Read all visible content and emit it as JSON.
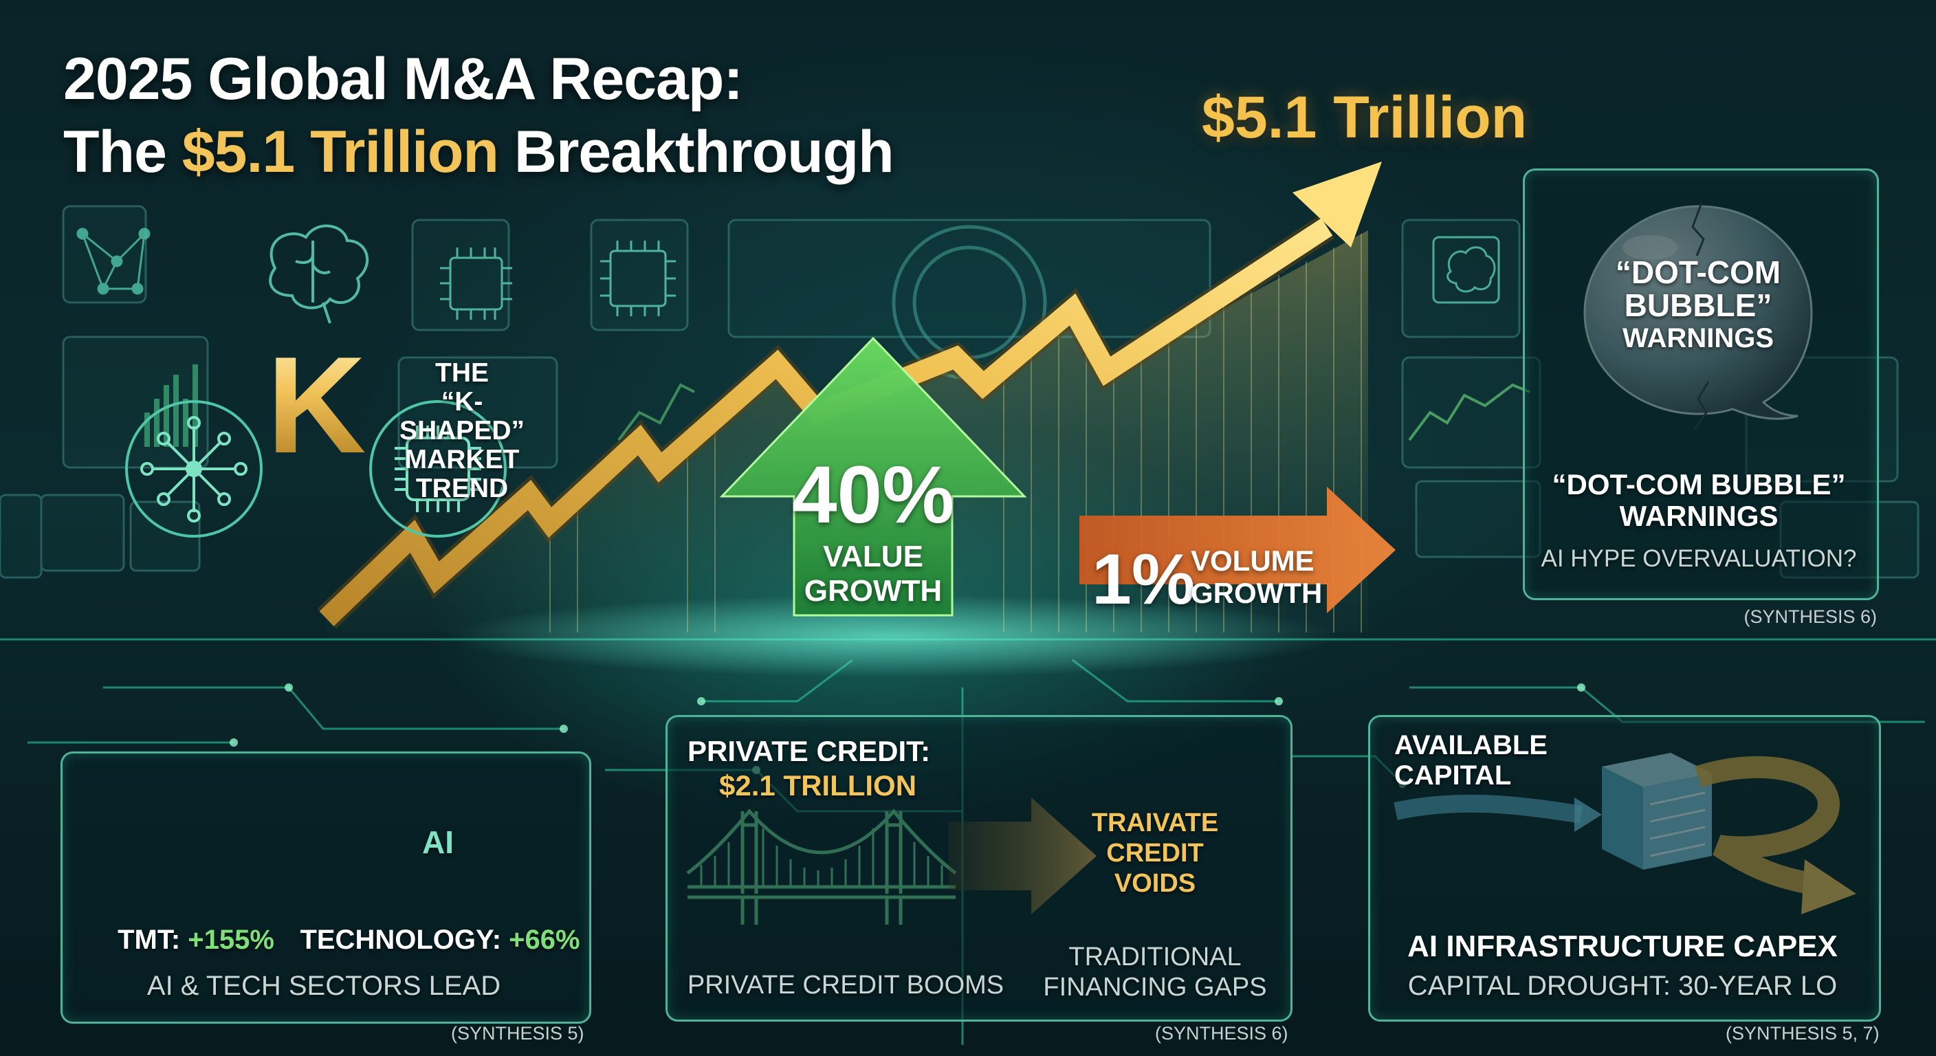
{
  "title": {
    "line1": "2025 Global M&A Recap:",
    "line2_prefix": "The ",
    "line2_highlight": "$5.1 Trillion",
    "line2_suffix": " Breakthrough"
  },
  "peak_label": "$5.1 Trillion",
  "k_trend": {
    "letter": "K",
    "line1": "THE",
    "line2": "“K-SHAPED”",
    "line3": "MARKET",
    "line4": "TREND"
  },
  "value_growth": {
    "percent": "40%",
    "line1": "VALUE",
    "line2": "GROWTH"
  },
  "volume_growth": {
    "percent": "1%",
    "line1": "VOLUME",
    "line2": "GROWTH"
  },
  "bubble_panel": {
    "bubble_line1": "“DOT-COM",
    "bubble_line2": "BUBBLE”",
    "bubble_line3": "WARNINGS",
    "heading_line1": "“DOT-COM BUBBLE”",
    "heading_line2": "WARNINGS",
    "subtitle": "AI HYPE OVERVALUATION?",
    "source": "(SYNTHESIS 6)"
  },
  "sectors_panel": {
    "tmt_label": "TMT:",
    "tmt_value": "+155%",
    "tech_label": "TECHNOLOGY:",
    "tech_value": "+66%",
    "chip_text": "AI",
    "caption": "AI & TECH SECTORS LEAD",
    "source": "(SYNTHESIS 5)"
  },
  "credit_panel": {
    "heading_line1": "PRIVATE CREDIT:",
    "heading_line2": "$2.1 TRILLION",
    "voids_line1": "TRAIVATE",
    "voids_line2": "CREDIT",
    "voids_line3": "VOIDS",
    "caption_left": "PRIVATE CREDIT BOOMS",
    "caption_right_line1": "TRADITIONAL",
    "caption_right_line2": "FINANCING GAPS",
    "source": "(SYNTHESIS 6)"
  },
  "capex_panel": {
    "available_line1": "AVAILABLE",
    "available_line2": "CAPITAL",
    "heading": "AI INFRASTRUCTURE CAPEX",
    "subtitle": "CAPITAL DROUGHT: 30-YEAR LO",
    "source": "(SYNTHESIS 5, 7)"
  },
  "colors": {
    "gold": "#f2c45a",
    "green_arrow": "#3fae4a",
    "orange_arrow": "#e0702a",
    "panel_border": "#4fb397",
    "positive_text": "#7fe07a"
  },
  "icons": [
    "neural-network-icon",
    "brain-icon",
    "ai-chip-icon",
    "circuit-node-icon",
    "cracked-bubble-icon",
    "golden-gate-bridge-icon",
    "server-cube-icon"
  ]
}
